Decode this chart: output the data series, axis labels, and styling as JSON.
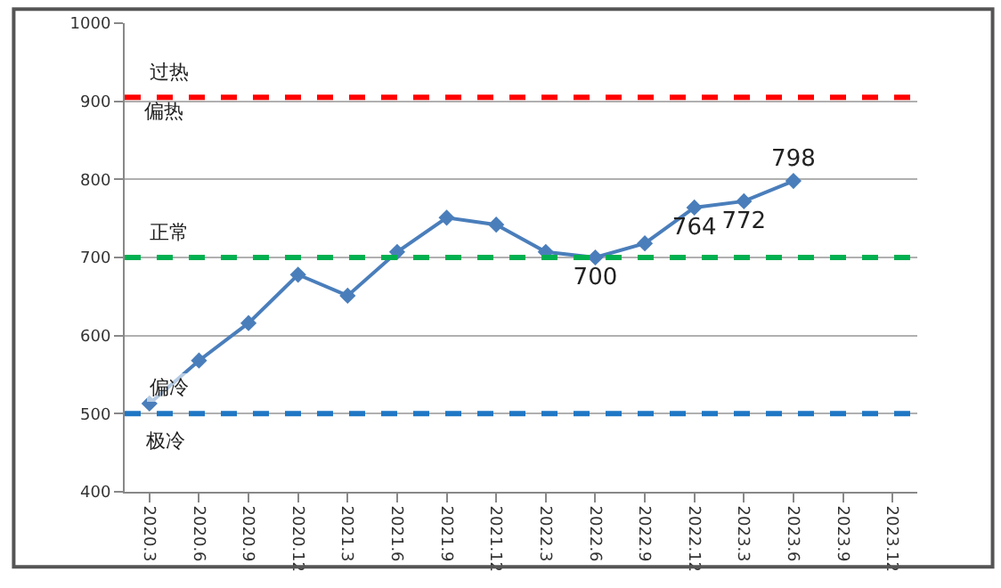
{
  "chart_data": {
    "type": "line",
    "categories": [
      "2020.3",
      "2020.6",
      "2020.9",
      "2020.12",
      "2021.3",
      "2021.6",
      "2021.9",
      "2021.12",
      "2022.3",
      "2022.6",
      "2022.9",
      "2022.12",
      "2023.3",
      "2023.6",
      "2023.9",
      "2023.12"
    ],
    "series": [
      {
        "color": "#4a7ebb",
        "values": [
          513,
          568,
          616,
          678,
          651,
          707,
          751,
          742,
          707,
          700,
          718,
          764,
          772,
          798,
          null,
          null
        ],
        "value_labels": [
          null,
          null,
          null,
          null,
          null,
          null,
          null,
          null,
          null,
          "700",
          null,
          "764",
          "772",
          "798",
          null,
          null
        ]
      }
    ],
    "ylim": [
      400,
      1000
    ],
    "yticks": [
      400,
      500,
      600,
      700,
      800,
      900,
      1000
    ],
    "grid": "y",
    "marker": "diamond",
    "line_style": "solid",
    "ref_lines": [
      {
        "axis": "y",
        "value": 905,
        "color": "#ff0000",
        "line_style": "dashed",
        "label": "过热"
      },
      {
        "axis": "y",
        "value": 700,
        "color": "#00b050",
        "line_style": "dashed",
        "label": "正常"
      },
      {
        "axis": "y",
        "value": 500,
        "color": "#1f77c4",
        "line_style": "dashed",
        "label": "偏冷"
      }
    ],
    "annotations": [
      "偏热",
      "极冷"
    ]
  }
}
